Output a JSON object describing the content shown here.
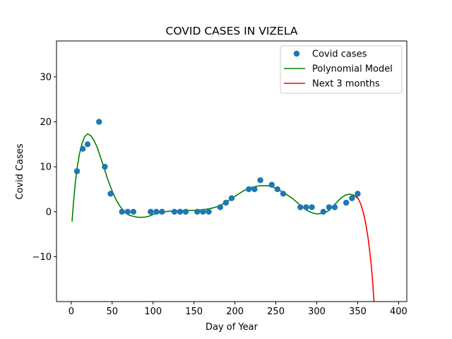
{
  "chart_data": {
    "type": "scatter",
    "title": "COVID CASES IN VIZELA",
    "xlabel": "Day of Year",
    "ylabel": "Covid Cases",
    "xlim": [
      -18,
      410
    ],
    "ylim": [
      -20,
      38
    ],
    "xticks": [
      0,
      50,
      100,
      150,
      200,
      250,
      300,
      350,
      400
    ],
    "yticks": [
      -10,
      0,
      10,
      20,
      30
    ],
    "ytick_labels": [
      "−10",
      "0",
      "10",
      "20",
      "30"
    ],
    "grid": false,
    "legend": {
      "placement": "top-right",
      "entries": [
        "Covid cases",
        "Polynomial Model",
        "Next 3 months"
      ]
    },
    "colors": {
      "points": "#1f77b4",
      "model": "#008000",
      "forecast": "#ff0000"
    },
    "series": [
      {
        "name": "Covid cases",
        "kind": "points",
        "x": [
          7,
          14,
          20,
          34,
          41,
          48,
          62,
          69,
          76,
          97,
          104,
          111,
          126,
          133,
          140,
          154,
          161,
          168,
          182,
          189,
          196,
          217,
          224,
          231,
          245,
          252,
          259,
          280,
          287,
          294,
          308,
          315,
          322,
          336,
          343,
          350
        ],
        "y": [
          9,
          14,
          15,
          20,
          10,
          4,
          0,
          0,
          0,
          0,
          0,
          0,
          0,
          0,
          0,
          0,
          0,
          0,
          1,
          2,
          3,
          5,
          5,
          7,
          6,
          5,
          4,
          1,
          1,
          1,
          0,
          1,
          1,
          2,
          3,
          4
        ]
      },
      {
        "name": "Polynomial Model",
        "kind": "line",
        "x": [
          1,
          3,
          5,
          7,
          10,
          13,
          16,
          20,
          24,
          28,
          32,
          36,
          40,
          45,
          50,
          55,
          60,
          65,
          70,
          75,
          80,
          85,
          90,
          95,
          100,
          110,
          120,
          130,
          140,
          150,
          160,
          170,
          180,
          190,
          200,
          210,
          220,
          230,
          240,
          245,
          250,
          255,
          260,
          265,
          270,
          275,
          280,
          285,
          290,
          295,
          300,
          305,
          310,
          315,
          320,
          325,
          330,
          335,
          340,
          345,
          350
        ],
        "y": [
          -2.2,
          2.5,
          6.5,
          9.5,
          12.8,
          15.0,
          16.6,
          17.3,
          16.9,
          15.8,
          14.2,
          12.0,
          9.8,
          7.0,
          4.6,
          2.6,
          1.1,
          0.0,
          -0.7,
          -1.0,
          -1.2,
          -1.25,
          -1.2,
          -1.0,
          -0.6,
          -0.1,
          0.1,
          0.2,
          0.3,
          0.3,
          0.4,
          0.7,
          1.2,
          2.2,
          3.4,
          4.6,
          5.4,
          5.8,
          5.8,
          5.6,
          5.2,
          4.7,
          4.2,
          3.6,
          3.0,
          2.2,
          1.4,
          0.7,
          0.1,
          -0.3,
          -0.5,
          -0.4,
          -0.2,
          0.3,
          1.2,
          2.2,
          3.1,
          3.7,
          3.9,
          3.7,
          3.0
        ]
      },
      {
        "name": "Next 3 months",
        "kind": "line",
        "x": [
          348,
          351,
          354,
          357,
          360,
          363,
          366,
          368,
          370
        ],
        "y": [
          3.6,
          2.8,
          1.6,
          -0.3,
          -2.8,
          -6.2,
          -10.8,
          -14.8,
          -20
        ]
      }
    ]
  }
}
